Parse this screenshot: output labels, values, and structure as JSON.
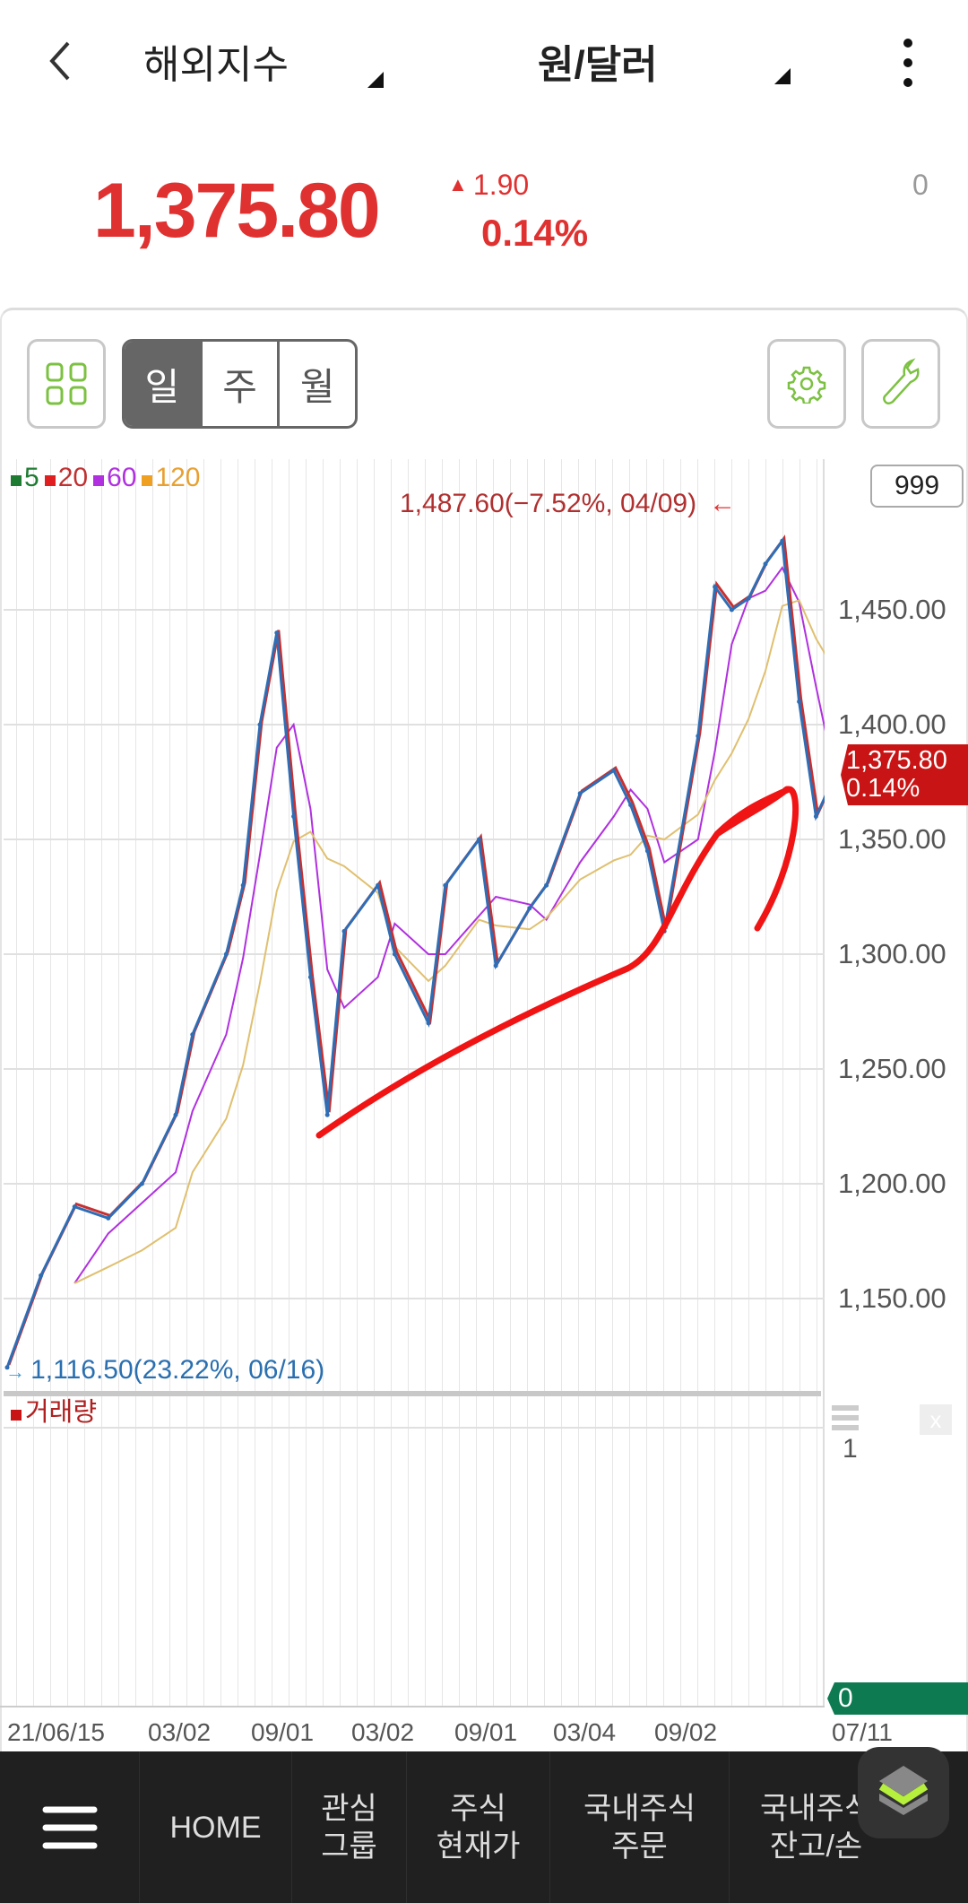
{
  "header": {
    "market_label": "해외지수",
    "instrument_label": "원/달러"
  },
  "quote": {
    "price": "1,375.80",
    "change": "1.90",
    "change_pct": "0.14%",
    "volume": "0",
    "color": "#e03131"
  },
  "toolbar": {
    "periods": [
      "일",
      "주",
      "월"
    ],
    "selected_period": "일"
  },
  "chart": {
    "legend": [
      {
        "label": "5",
        "color": "#1e7b32"
      },
      {
        "label": "20",
        "color": "#e02020"
      },
      {
        "label": "60",
        "color": "#b030e0"
      },
      {
        "label": "120",
        "color": "#f0a020"
      }
    ],
    "count_box": "999",
    "max_label": "1,487.60(−7.52%, 04/09)",
    "min_label": "1,116.50(23.22%, 06/16)",
    "current_tag": {
      "price": "1,375.80",
      "pct": "0.14%"
    },
    "volume_label": "거래량",
    "volume_axis": [
      "1",
      "0"
    ]
  },
  "chart_data": {
    "type": "line",
    "yticks": [
      "1,450.00",
      "1,400.00",
      "1,350.00",
      "1,300.00",
      "1,250.00",
      "1,200.00",
      "1,150.00"
    ],
    "ylim": [
      1116.5,
      1487.6
    ],
    "xticks": [
      "21/06/15",
      "03/02",
      "09/01",
      "03/02",
      "09/01",
      "03/04",
      "09/02",
      "07/11"
    ],
    "grid": true,
    "series": [
      {
        "x": [
          "2021-06",
          "2021-08",
          "2021-10",
          "2021-12",
          "2022-02",
          "2022-04",
          "2022-05",
          "2022-07",
          "2022-08",
          "2022-09",
          "2022-10",
          "2022-11",
          "2022-12",
          "2023-01",
          "2023-02",
          "2023-04",
          "2023-05",
          "2023-07",
          "2023-08",
          "2023-10",
          "2023-11",
          "2024-01",
          "2024-02",
          "2024-04",
          "2024-06",
          "2024-07",
          "2024-08",
          "2024-09",
          "2024-11",
          "2024-12",
          "2025-01",
          "2025-02",
          "2025-03",
          "2025-04",
          "2025-05",
          "2025-06",
          "2025-07"
        ],
        "values": [
          1120,
          1160,
          1190,
          1185,
          1200,
          1230,
          1265,
          1300,
          1330,
          1400,
          1440,
          1360,
          1290,
          1230,
          1310,
          1330,
          1300,
          1270,
          1330,
          1350,
          1295,
          1320,
          1330,
          1370,
          1380,
          1365,
          1345,
          1310,
          1395,
          1460,
          1450,
          1455,
          1470,
          1480,
          1410,
          1360,
          1375.8
        ]
      }
    ]
  },
  "nav": {
    "items": [
      "HOME",
      "관심\n그룹",
      "주식\n현재가",
      "국내주식\n주문",
      "국내주식\n잔고/손"
    ]
  }
}
